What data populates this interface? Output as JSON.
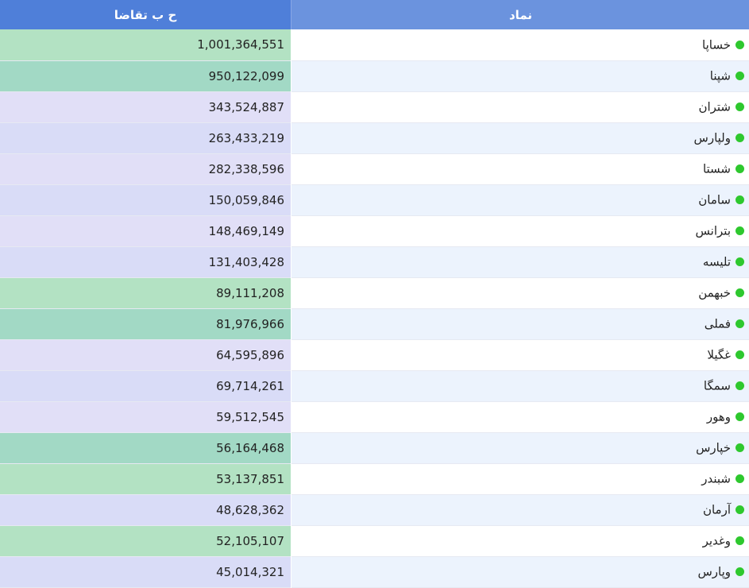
{
  "header": {
    "demand_label": "ح ب تقاضا",
    "symbol_label": "نماد"
  },
  "colors": {
    "header_dark": "#4f7fd9",
    "header_light": "#6b93de",
    "status_dot": "#2ec82e",
    "green_light": "#b3e2c3",
    "green_mid": "#a2d9c5",
    "lavender_light": "#e1dff7",
    "lavender_mid": "#d9dcf7",
    "symbol_bg_white": "#ffffff",
    "symbol_bg_blue": "#ecf3fd"
  },
  "rows": [
    {
      "symbol": "خساپا",
      "demand": "1,001,364,551",
      "tone": "green_light"
    },
    {
      "symbol": "شپنا",
      "demand": "950,122,099",
      "tone": "green_mid"
    },
    {
      "symbol": "شتران",
      "demand": "343,524,887",
      "tone": "lavender_light"
    },
    {
      "symbol": "ولپارس",
      "demand": "263,433,219",
      "tone": "lavender_mid"
    },
    {
      "symbol": "شستا",
      "demand": "282,338,596",
      "tone": "lavender_light"
    },
    {
      "symbol": "سامان",
      "demand": "150,059,846",
      "tone": "lavender_mid"
    },
    {
      "symbol": "بترانس",
      "demand": "148,469,149",
      "tone": "lavender_light"
    },
    {
      "symbol": "تلیسه",
      "demand": "131,403,428",
      "tone": "lavender_mid"
    },
    {
      "symbol": "خبهمن",
      "demand": "89,111,208",
      "tone": "green_light"
    },
    {
      "symbol": "فملی",
      "demand": "81,976,966",
      "tone": "green_mid"
    },
    {
      "symbol": "غگیلا",
      "demand": "64,595,896",
      "tone": "lavender_light"
    },
    {
      "symbol": "سمگا",
      "demand": "69,714,261",
      "tone": "lavender_mid"
    },
    {
      "symbol": "وهور",
      "demand": "59,512,545",
      "tone": "lavender_light"
    },
    {
      "symbol": "خپارس",
      "demand": "56,164,468",
      "tone": "green_mid"
    },
    {
      "symbol": "شبندر",
      "demand": "53,137,851",
      "tone": "green_light"
    },
    {
      "symbol": "آرمان",
      "demand": "48,628,362",
      "tone": "lavender_mid"
    },
    {
      "symbol": "وغدیر",
      "demand": "52,105,107",
      "tone": "green_light"
    },
    {
      "symbol": "وپارس",
      "demand": "45,014,321",
      "tone": "lavender_mid"
    }
  ]
}
